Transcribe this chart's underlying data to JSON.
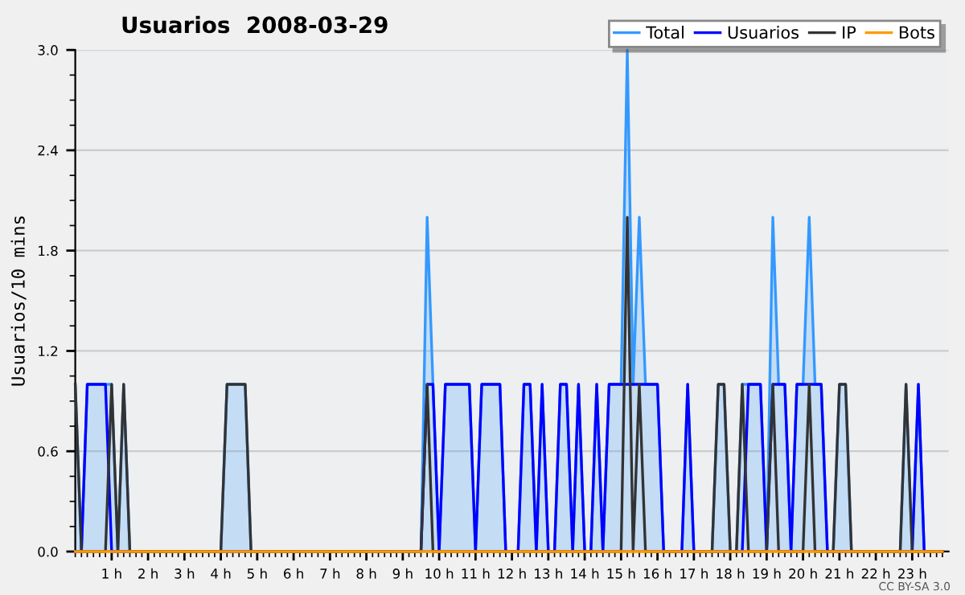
{
  "chart_data": {
    "type": "line",
    "title": "Usuarios  2008-03-29",
    "ylabel": "Usuarios/10 mins",
    "annotations": [
      "CC BY-SA 3.0"
    ],
    "x": [
      0,
      0.17,
      0.33,
      0.5,
      0.67,
      0.83,
      1,
      1.17,
      1.33,
      1.5,
      1.67,
      1.83,
      2,
      2.17,
      2.33,
      2.5,
      2.67,
      2.83,
      3,
      3.17,
      3.33,
      3.5,
      3.67,
      3.83,
      4,
      4.17,
      4.33,
      4.5,
      4.67,
      4.83,
      5,
      5.17,
      5.33,
      5.5,
      5.67,
      5.83,
      6,
      6.17,
      6.33,
      6.5,
      6.67,
      6.83,
      7,
      7.17,
      7.33,
      7.5,
      7.67,
      7.83,
      8,
      8.17,
      8.33,
      8.5,
      8.67,
      8.83,
      9,
      9.17,
      9.33,
      9.5,
      9.67,
      9.83,
      10,
      10.17,
      10.33,
      10.5,
      10.67,
      10.83,
      11,
      11.17,
      11.33,
      11.5,
      11.67,
      11.83,
      12,
      12.17,
      12.33,
      12.5,
      12.67,
      12.83,
      13,
      13.17,
      13.33,
      13.5,
      13.67,
      13.83,
      14,
      14.17,
      14.33,
      14.5,
      14.67,
      14.83,
      15,
      15.17,
      15.33,
      15.5,
      15.67,
      15.83,
      16,
      16.17,
      16.33,
      16.5,
      16.67,
      16.83,
      17,
      17.17,
      17.33,
      17.5,
      17.67,
      17.83,
      18,
      18.17,
      18.33,
      18.5,
      18.67,
      18.83,
      19,
      19.17,
      19.33,
      19.5,
      19.67,
      19.83,
      20,
      20.17,
      20.33,
      20.5,
      20.67,
      20.83,
      21,
      21.17,
      21.33,
      21.5,
      21.67,
      21.83,
      22,
      22.17,
      22.33,
      22.5,
      22.67,
      22.83,
      23,
      23.17,
      23.33,
      23.5,
      23.67,
      23.83
    ],
    "series": [
      {
        "name": "Total",
        "type": "area",
        "color": "#3399ff",
        "values": [
          1,
          0,
          1,
          1,
          1,
          1,
          1,
          0,
          1,
          0,
          0,
          0,
          0,
          0,
          0,
          0,
          0,
          0,
          0,
          0,
          0,
          0,
          0,
          0,
          0,
          1,
          1,
          1,
          1,
          0,
          0,
          0,
          0,
          0,
          0,
          0,
          0,
          0,
          0,
          0,
          0,
          0,
          0,
          0,
          0,
          0,
          0,
          0,
          0,
          0,
          0,
          0,
          0,
          0,
          0,
          0,
          0,
          0,
          2,
          1,
          0,
          1,
          1,
          1,
          1,
          1,
          0,
          1,
          1,
          1,
          1,
          0,
          0,
          0,
          1,
          1,
          0,
          1,
          0,
          0,
          1,
          1,
          0,
          1,
          0,
          0,
          1,
          0,
          1,
          1,
          1,
          3,
          1,
          2,
          1,
          1,
          1,
          0,
          0,
          0,
          0,
          1,
          0,
          0,
          0,
          0,
          1,
          1,
          0,
          0,
          1,
          1,
          1,
          1,
          0,
          2,
          1,
          1,
          0,
          1,
          1,
          2,
          1,
          1,
          0,
          0,
          1,
          1,
          0,
          0,
          0,
          0,
          0,
          0,
          0,
          0,
          0,
          1,
          0,
          1,
          0,
          0,
          0,
          0
        ]
      },
      {
        "name": "Usuarios",
        "color": "#0000ff",
        "values": [
          0,
          0,
          1,
          1,
          1,
          1,
          0,
          0,
          0,
          0,
          0,
          0,
          0,
          0,
          0,
          0,
          0,
          0,
          0,
          0,
          0,
          0,
          0,
          0,
          0,
          0,
          0,
          0,
          0,
          0,
          0,
          0,
          0,
          0,
          0,
          0,
          0,
          0,
          0,
          0,
          0,
          0,
          0,
          0,
          0,
          0,
          0,
          0,
          0,
          0,
          0,
          0,
          0,
          0,
          0,
          0,
          0,
          0,
          1,
          1,
          0,
          1,
          1,
          1,
          1,
          1,
          0,
          1,
          1,
          1,
          1,
          0,
          0,
          0,
          1,
          1,
          0,
          1,
          0,
          0,
          1,
          1,
          0,
          1,
          0,
          0,
          1,
          0,
          1,
          1,
          1,
          1,
          1,
          1,
          1,
          1,
          1,
          0,
          0,
          0,
          0,
          1,
          0,
          0,
          0,
          0,
          0,
          0,
          0,
          0,
          0,
          1,
          1,
          1,
          0,
          1,
          1,
          1,
          0,
          1,
          1,
          1,
          1,
          1,
          0,
          0,
          0,
          0,
          0,
          0,
          0,
          0,
          0,
          0,
          0,
          0,
          0,
          0,
          0,
          1,
          0,
          0,
          0,
          0
        ]
      },
      {
        "name": "IP",
        "color": "#333333",
        "values": [
          1,
          0,
          0,
          0,
          0,
          0,
          1,
          0,
          1,
          0,
          0,
          0,
          0,
          0,
          0,
          0,
          0,
          0,
          0,
          0,
          0,
          0,
          0,
          0,
          0,
          1,
          1,
          1,
          1,
          0,
          0,
          0,
          0,
          0,
          0,
          0,
          0,
          0,
          0,
          0,
          0,
          0,
          0,
          0,
          0,
          0,
          0,
          0,
          0,
          0,
          0,
          0,
          0,
          0,
          0,
          0,
          0,
          0,
          1,
          0,
          0,
          0,
          0,
          0,
          0,
          0,
          0,
          0,
          0,
          0,
          0,
          0,
          0,
          0,
          0,
          0,
          0,
          0,
          0,
          0,
          0,
          0,
          0,
          0,
          0,
          0,
          0,
          0,
          0,
          0,
          0,
          2,
          0,
          1,
          0,
          0,
          0,
          0,
          0,
          0,
          0,
          0,
          0,
          0,
          0,
          0,
          1,
          1,
          0,
          0,
          1,
          0,
          0,
          0,
          0,
          1,
          0,
          0,
          0,
          0,
          0,
          1,
          0,
          0,
          0,
          0,
          1,
          1,
          0,
          0,
          0,
          0,
          0,
          0,
          0,
          0,
          0,
          1,
          0,
          0,
          0,
          0,
          0,
          0
        ]
      },
      {
        "name": "Bots",
        "color": "#ff9900",
        "values": [
          0,
          0,
          0,
          0,
          0,
          0,
          0,
          0,
          0,
          0,
          0,
          0,
          0,
          0,
          0,
          0,
          0,
          0,
          0,
          0,
          0,
          0,
          0,
          0,
          0,
          0,
          0,
          0,
          0,
          0,
          0,
          0,
          0,
          0,
          0,
          0,
          0,
          0,
          0,
          0,
          0,
          0,
          0,
          0,
          0,
          0,
          0,
          0,
          0,
          0,
          0,
          0,
          0,
          0,
          0,
          0,
          0,
          0,
          0,
          0,
          0,
          0,
          0,
          0,
          0,
          0,
          0,
          0,
          0,
          0,
          0,
          0,
          0,
          0,
          0,
          0,
          0,
          0,
          0,
          0,
          0,
          0,
          0,
          0,
          0,
          0,
          0,
          0,
          0,
          0,
          0,
          0,
          0,
          0,
          0,
          0,
          0,
          0,
          0,
          0,
          0,
          0,
          0,
          0,
          0,
          0,
          0,
          0,
          0,
          0,
          0,
          0,
          0,
          0,
          0,
          0,
          0,
          0,
          0,
          0,
          0,
          0,
          0,
          0,
          0,
          0,
          0,
          0,
          0,
          0,
          0,
          0,
          0,
          0,
          0,
          0,
          0,
          0,
          0,
          0,
          0,
          0,
          0,
          0
        ]
      }
    ],
    "xlim": [
      0,
      24
    ],
    "xticks": [
      {
        "value": 1,
        "label": "1 h"
      },
      {
        "value": 2,
        "label": "2 h"
      },
      {
        "value": 3,
        "label": "3 h"
      },
      {
        "value": 4,
        "label": "4 h"
      },
      {
        "value": 5,
        "label": "5 h"
      },
      {
        "value": 6,
        "label": "6 h"
      },
      {
        "value": 7,
        "label": "7 h"
      },
      {
        "value": 8,
        "label": "8 h"
      },
      {
        "value": 9,
        "label": "9 h"
      },
      {
        "value": 10,
        "label": "10 h"
      },
      {
        "value": 11,
        "label": "11 h"
      },
      {
        "value": 12,
        "label": "12 h"
      },
      {
        "value": 13,
        "label": "13 h"
      },
      {
        "value": 14,
        "label": "14 h"
      },
      {
        "value": 15,
        "label": "15 h"
      },
      {
        "value": 16,
        "label": "16 h"
      },
      {
        "value": 17,
        "label": "17 h"
      },
      {
        "value": 18,
        "label": "18 h"
      },
      {
        "value": 19,
        "label": "19 h"
      },
      {
        "value": 20,
        "label": "20 h"
      },
      {
        "value": 21,
        "label": "21 h"
      },
      {
        "value": 22,
        "label": "22 h"
      },
      {
        "value": 23,
        "label": "23 h"
      }
    ],
    "ylim": [
      0,
      3
    ],
    "yticks": [
      {
        "value": 0,
        "label": "0.0"
      },
      {
        "value": 0.6,
        "label": "0.6"
      },
      {
        "value": 1.2,
        "label": "1.2"
      },
      {
        "value": 1.8,
        "label": "1.8"
      },
      {
        "value": 2.4,
        "label": "2.4"
      },
      {
        "value": 3,
        "label": "3.0"
      }
    ],
    "grid": "y",
    "legend": "top right",
    "marker": "none",
    "line_style": "solid"
  }
}
